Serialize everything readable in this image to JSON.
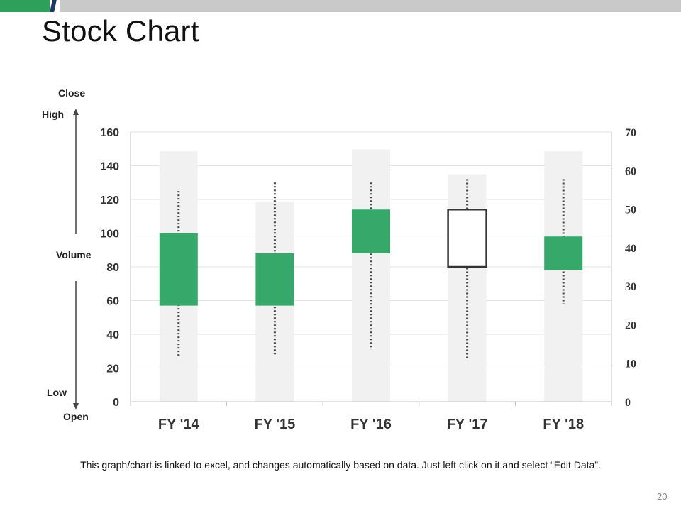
{
  "slide": {
    "title": "Stock Chart",
    "footnote": "This graph/chart is linked to excel, and changes automatically based on data. Just left click on it and select “Edit Data”.",
    "page_number": "20",
    "side_labels": {
      "close": "Close",
      "high": "High",
      "volume": "Volume",
      "low": "Low",
      "open": "Open"
    }
  },
  "colors": {
    "accent_green": "#2fa05a",
    "accent_navy": "#1f3864",
    "header_gray": "#c9c9c9",
    "volume_bar": "#f1f1f1",
    "up_box": "#35a86a",
    "box_outline": "#333333"
  },
  "chart_data": {
    "type": "stock",
    "title": "",
    "categories": [
      "FY '14",
      "FY '15",
      "FY '16",
      "FY '17",
      "FY '18"
    ],
    "primary_axis": {
      "min": 0,
      "max": 160,
      "step": 20,
      "ticks": [
        "0",
        "20",
        "40",
        "60",
        "80",
        "100",
        "120",
        "140",
        "160"
      ]
    },
    "secondary_axis": {
      "min": 0,
      "max": 70,
      "step": 10,
      "ticks": [
        "0",
        "10",
        "20",
        "30",
        "40",
        "50",
        "60",
        "70"
      ]
    },
    "grid": true,
    "series": [
      {
        "name": "Volume",
        "axis": "secondary",
        "values": [
          65,
          52,
          65.5,
          59,
          65
        ]
      },
      {
        "name": "Open",
        "axis": "primary",
        "values": [
          57,
          57,
          88,
          114,
          78
        ]
      },
      {
        "name": "High",
        "axis": "primary",
        "values": [
          125,
          130,
          130,
          132,
          132
        ]
      },
      {
        "name": "Low",
        "axis": "primary",
        "values": [
          26,
          28,
          31,
          25,
          58
        ]
      },
      {
        "name": "Close",
        "axis": "primary",
        "values": [
          100,
          88,
          114,
          80,
          98
        ]
      }
    ]
  }
}
